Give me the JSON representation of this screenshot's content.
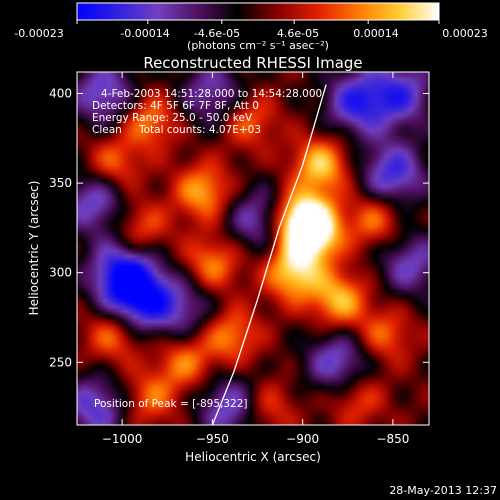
{
  "chart_data": {
    "type": "heatmap",
    "title": "Reconstructed RHESSI Image",
    "xlabel": "Heliocentric X (arcsec)",
    "ylabel": "Heliocentric Y (arcsec)",
    "xlim": [
      -1025,
      -830
    ],
    "ylim": [
      215,
      412
    ],
    "x_ticks": [
      -1000,
      -950,
      -900,
      -850
    ],
    "y_ticks": [
      250,
      300,
      350,
      400
    ],
    "colorbar": {
      "unit_label": "(photons cm⁻² s⁻¹ asec⁻²)",
      "range": [
        -0.00023,
        0.00023
      ],
      "ticks": [
        "-0.00023",
        "-0.00014",
        "-4.6e-05",
        "4.6e-05",
        "0.00014",
        "0.00023"
      ],
      "colormap": [
        "#0000ff",
        "#3020e0",
        "#7040c0",
        "#501060",
        "#000000",
        "#8a0000",
        "#e02000",
        "#ff7a00",
        "#ffcc30",
        "#ffffff"
      ]
    },
    "annotations": {
      "time_range": "4-Feb-2003 14:51:28.000 to 14:54:28.000",
      "detectors": "Detectors: 4F 5F 6F 7F 8F, Att 0",
      "energy_range": "Energy Range: 25.0 - 50.0 keV",
      "method": "Clean",
      "total_counts": "Total counts: 4.07E+03",
      "peak_position": "Position of Peak = [-895,322]"
    },
    "limb_line": [
      [
        -950,
        215
      ],
      [
        -938,
        245
      ],
      [
        -925,
        285
      ],
      [
        -913,
        325
      ],
      [
        -900,
        360
      ],
      [
        -887,
        405
      ]
    ],
    "intensity_peaks": [
      {
        "x": -900,
        "y": 330,
        "strength": 1.0
      },
      {
        "x": -895,
        "y": 322,
        "strength": 1.0
      },
      {
        "x": -905,
        "y": 300,
        "strength": 0.85
      },
      {
        "x": -890,
        "y": 360,
        "strength": 0.8
      },
      {
        "x": -955,
        "y": 345,
        "strength": 0.7
      },
      {
        "x": -880,
        "y": 285,
        "strength": 0.75
      },
      {
        "x": -985,
        "y": 385,
        "strength": 0.6
      },
      {
        "x": -1005,
        "y": 360,
        "strength": 0.55
      },
      {
        "x": -950,
        "y": 305,
        "strength": 0.6
      },
      {
        "x": -965,
        "y": 250,
        "strength": 0.55
      },
      {
        "x": -940,
        "y": 265,
        "strength": 0.6
      },
      {
        "x": -1005,
        "y": 265,
        "strength": 0.55
      },
      {
        "x": -990,
        "y": 325,
        "strength": 0.5
      },
      {
        "x": -860,
        "y": 330,
        "strength": 0.55
      },
      {
        "x": -855,
        "y": 265,
        "strength": 0.5
      },
      {
        "x": -930,
        "y": 385,
        "strength": 0.5
      },
      {
        "x": -870,
        "y": 230,
        "strength": 0.45
      },
      {
        "x": -920,
        "y": 225,
        "strength": 0.45
      },
      {
        "x": -985,
        "y": 230,
        "strength": 0.5
      }
    ],
    "intensity_troughs": [
      {
        "x": -1000,
        "y": 300,
        "strength": 0.9
      },
      {
        "x": -1010,
        "y": 400,
        "strength": 0.7
      },
      {
        "x": -950,
        "y": 400,
        "strength": 0.6
      },
      {
        "x": -990,
        "y": 285,
        "strength": 0.9
      },
      {
        "x": -870,
        "y": 395,
        "strength": 0.8
      },
      {
        "x": -845,
        "y": 400,
        "strength": 0.7
      },
      {
        "x": -850,
        "y": 355,
        "strength": 0.8
      },
      {
        "x": -880,
        "y": 250,
        "strength": 0.7
      },
      {
        "x": -940,
        "y": 225,
        "strength": 0.7
      },
      {
        "x": -1015,
        "y": 225,
        "strength": 0.7
      },
      {
        "x": -925,
        "y": 330,
        "strength": 0.6
      },
      {
        "x": -1015,
        "y": 340,
        "strength": 0.7
      },
      {
        "x": -840,
        "y": 305,
        "strength": 0.6
      },
      {
        "x": -965,
        "y": 280,
        "strength": 0.5
      }
    ]
  },
  "footer": {
    "timestamp": "28-May-2013 12:37"
  }
}
